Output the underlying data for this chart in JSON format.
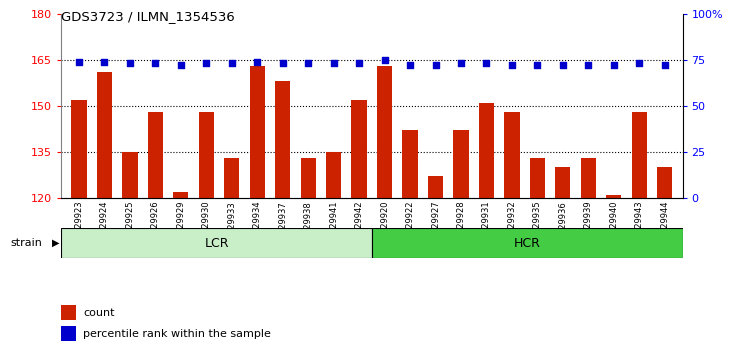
{
  "title": "GDS3723 / ILMN_1354536",
  "samples": [
    "GSM429923",
    "GSM429924",
    "GSM429925",
    "GSM429926",
    "GSM429929",
    "GSM429930",
    "GSM429933",
    "GSM429934",
    "GSM429937",
    "GSM429938",
    "GSM429941",
    "GSM429942",
    "GSM429920",
    "GSM429922",
    "GSM429927",
    "GSM429928",
    "GSM429931",
    "GSM429932",
    "GSM429935",
    "GSM429936",
    "GSM429939",
    "GSM429940",
    "GSM429943",
    "GSM429944"
  ],
  "counts": [
    152,
    161,
    135,
    148,
    122,
    148,
    133,
    163,
    158,
    133,
    135,
    152,
    163,
    142,
    127,
    142,
    151,
    148,
    133,
    130,
    133,
    121,
    148,
    130
  ],
  "percentiles": [
    74,
    74,
    73,
    73,
    72,
    73,
    73,
    74,
    73,
    73,
    73,
    73,
    75,
    72,
    72,
    73,
    73,
    72,
    72,
    72,
    72,
    72,
    73,
    72
  ],
  "lcr_count": 12,
  "hcr_count": 12,
  "ylim_left": [
    120,
    180
  ],
  "ylim_right": [
    0,
    100
  ],
  "yticks_left": [
    120,
    135,
    150,
    165,
    180
  ],
  "yticks_right": [
    0,
    25,
    50,
    75,
    100
  ],
  "bar_color": "#cc2200",
  "dot_color": "#0000cc",
  "lcr_color": "#c8efc8",
  "hcr_color": "#44cc44",
  "bg_color": "#ffffff",
  "xlabel_strain": "strain",
  "legend_count": "count",
  "legend_pct": "percentile rank within the sample"
}
